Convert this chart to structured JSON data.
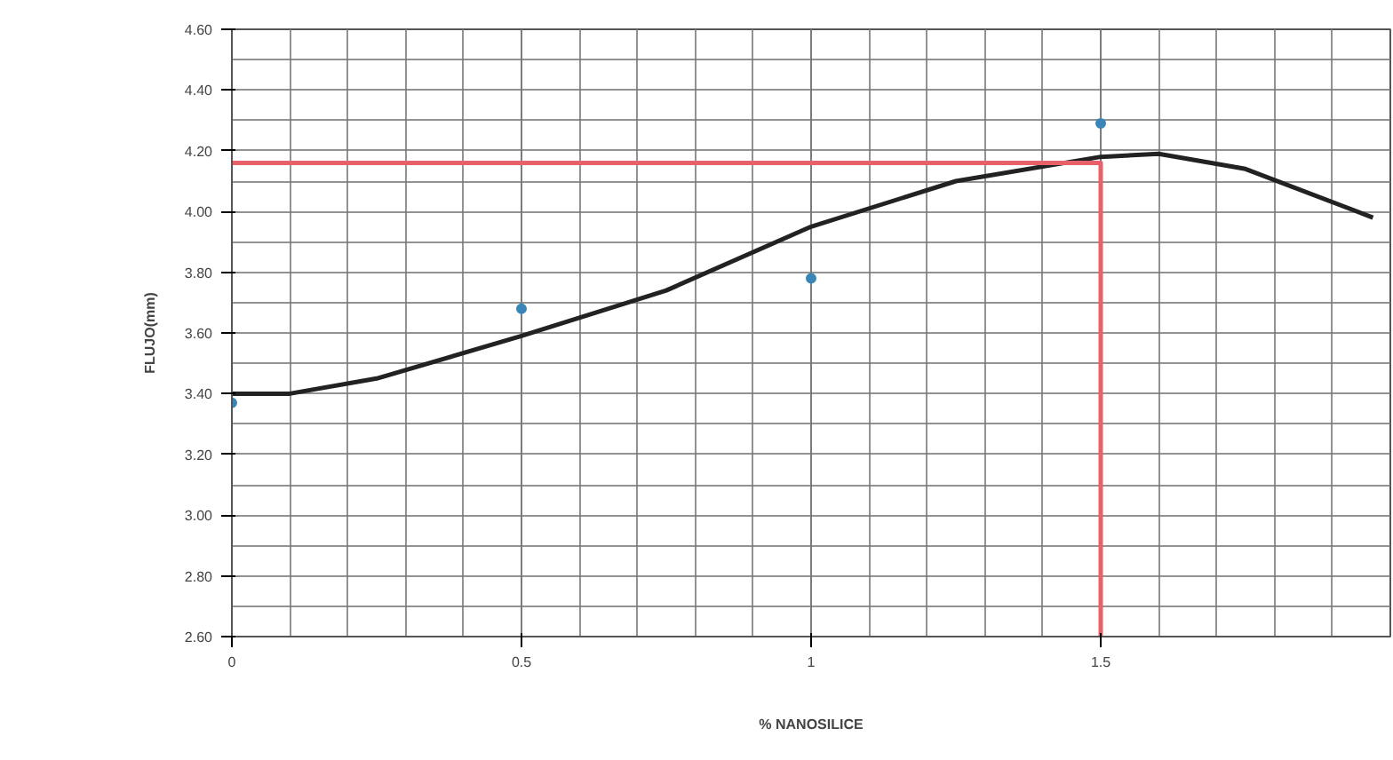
{
  "chart_data": {
    "type": "scatter",
    "xlabel": "% NANOSILICE",
    "ylabel": "FLUJO(mm)",
    "xlim": [
      0,
      2
    ],
    "ylim": [
      2.6,
      4.6
    ],
    "xticks": [
      0,
      0.5,
      1,
      1.5
    ],
    "yticks": [
      {
        "value": 2.6,
        "label": "2.60"
      },
      {
        "value": 2.8,
        "label": "2.80"
      },
      {
        "value": 3.0,
        "label": "3.00"
      },
      {
        "value": 3.2,
        "label": "3.20"
      },
      {
        "value": 3.4,
        "label": "3.40"
      },
      {
        "value": 3.6,
        "label": "3.60"
      },
      {
        "value": 3.8,
        "label": "3.80"
      },
      {
        "value": 4.0,
        "label": "4.00"
      },
      {
        "value": 4.2,
        "label": "4.20"
      },
      {
        "value": 4.4,
        "label": "4.40"
      },
      {
        "value": 4.6,
        "label": "4.60"
      }
    ],
    "grid": true,
    "series": [
      {
        "color": "#3a86b8",
        "marker": "circle",
        "x": [
          0,
          0.5,
          1,
          1.5
        ],
        "values": [
          3.37,
          3.68,
          3.78,
          4.29
        ]
      },
      {
        "type": "line",
        "color": "#222222",
        "x": [
          0,
          0.1,
          0.25,
          0.5,
          0.75,
          1,
          1.25,
          1.5,
          1.6,
          1.75,
          1.97
        ],
        "values": [
          3.4,
          3.4,
          3.45,
          3.59,
          3.74,
          3.95,
          4.1,
          4.18,
          4.19,
          4.14,
          3.98
        ]
      },
      {
        "type": "line",
        "color": "#e8606a",
        "x": [
          1.5,
          0,
          1.5,
          1.5
        ],
        "values": [
          4.16,
          4.16,
          4.16,
          2.6
        ]
      }
    ]
  }
}
